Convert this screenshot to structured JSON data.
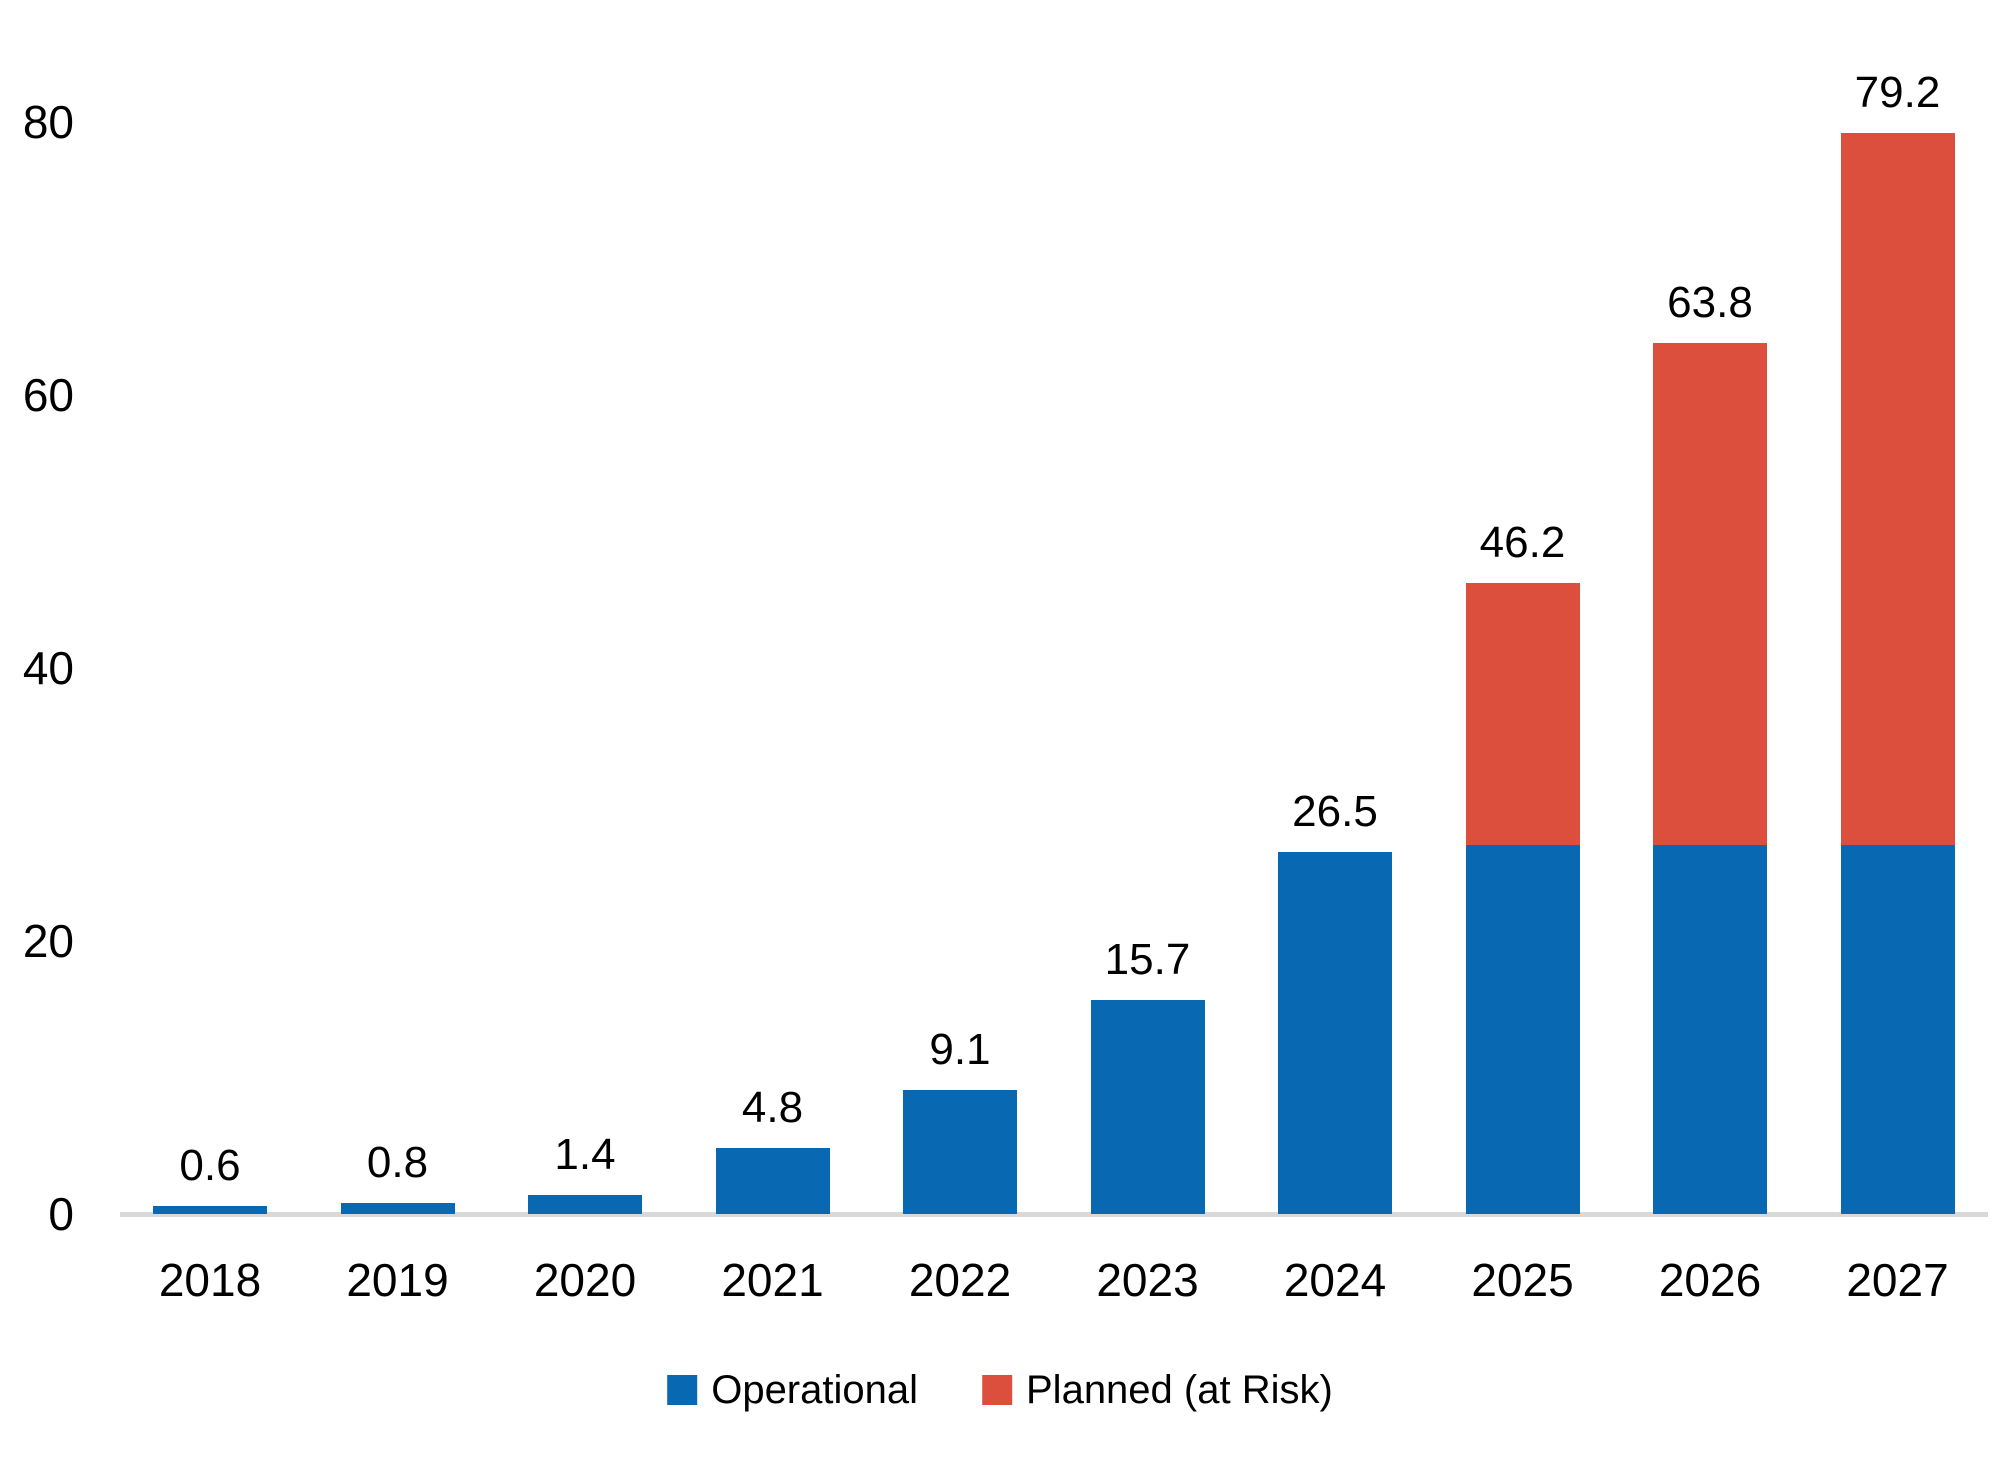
{
  "chart_data": {
    "type": "bar",
    "stacked": true,
    "title": "",
    "categories": [
      "2018",
      "2019",
      "2020",
      "2021",
      "2022",
      "2023",
      "2024",
      "2025",
      "2026",
      "2027"
    ],
    "series": [
      {
        "name": "Operational",
        "color": "#0868B1",
        "values": [
          0.6,
          0.8,
          1.4,
          4.8,
          9.1,
          15.7,
          26.5,
          27.0,
          27.0,
          27.0
        ]
      },
      {
        "name": "Planned (at Risk)",
        "color": "#DC4F3D",
        "values": [
          0,
          0,
          0,
          0,
          0,
          0,
          0,
          19.2,
          36.8,
          52.2
        ]
      }
    ],
    "totals": [
      0.6,
      0.8,
      1.4,
      4.8,
      9.1,
      15.7,
      26.5,
      46.2,
      63.8,
      79.2
    ],
    "total_labels": [
      "0.6",
      "0.8",
      "1.4",
      "4.8",
      "9.1",
      "15.7",
      "26.5",
      "46.2",
      "63.8",
      "79.2"
    ],
    "xlabel": "",
    "ylabel": "",
    "ylim": [
      0,
      80
    ],
    "yticks": [
      "0",
      "20",
      "40",
      "60",
      "80"
    ],
    "ytick_values": [
      0,
      20,
      40,
      60,
      80
    ],
    "grid": false,
    "legend_position": "bottom-center",
    "axis_line_color": "#D9D9D9",
    "text_color": "#000000",
    "background_color": "#FFFFFF"
  }
}
